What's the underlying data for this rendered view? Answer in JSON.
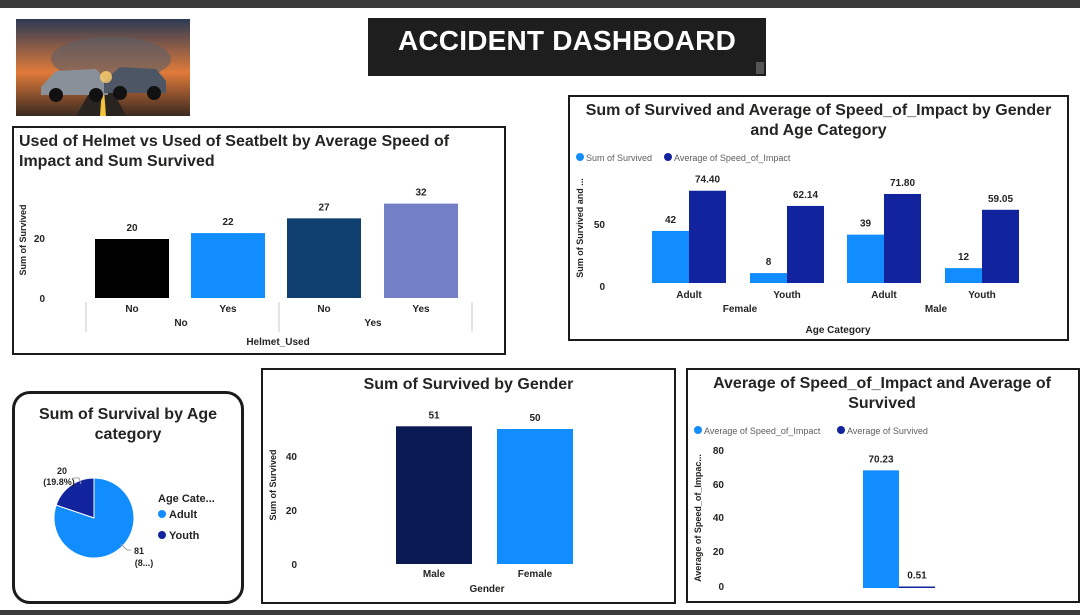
{
  "dashboard": {
    "title": "ACCIDENT DASHBOARD"
  },
  "colors": {
    "black": "#000000",
    "light_blue": "#118DFF",
    "navy": "#12239E",
    "dark_blue": "#0E3F6E",
    "lavender": "#7480C6",
    "dark_navy": "#0A1951"
  },
  "chart_data": [
    {
      "id": "helmet_seatbelt",
      "type": "bar",
      "title": "Used of Helmet vs Used of Seatbelt by Average Speed of Impact and Sum Survived",
      "xlabel": "Helmet_Used",
      "ylabel": "Sum of Survived",
      "groups": [
        "No",
        "Yes"
      ],
      "categories": [
        "No",
        "Yes",
        "No",
        "Yes"
      ],
      "values": [
        20,
        22,
        27,
        32
      ],
      "data_labels": [
        "20",
        "22",
        "27",
        "32"
      ],
      "bar_colors": [
        "#000000",
        "#118DFF",
        "#0E3F6E",
        "#7480C6"
      ],
      "yticks": [
        "20",
        "0"
      ],
      "ylim": [
        0,
        35
      ]
    },
    {
      "id": "gender_age",
      "type": "bar",
      "title": "Sum of Survived and Average of Speed_of_Impact by Gender and Age Category",
      "xlabel": "Age Category",
      "ylabel": "Sum of Survived and ...",
      "groups": [
        "Female",
        "Male"
      ],
      "categories": [
        "Adult",
        "Youth",
        "Adult",
        "Youth"
      ],
      "series": [
        {
          "name": "Sum of Survived",
          "color": "#118DFF",
          "values": [
            42,
            8,
            39,
            12
          ],
          "labels": [
            "42",
            "8",
            "39",
            "12"
          ]
        },
        {
          "name": "Average of Speed_of_Impact",
          "color": "#12239E",
          "values": [
            74.4,
            62.14,
            71.8,
            59.05
          ],
          "labels": [
            "74.40",
            "62.14",
            "71.80",
            "59.05"
          ]
        }
      ],
      "yticks": [
        "50",
        "0"
      ],
      "ylim": [
        0,
        85
      ]
    },
    {
      "id": "age_pie",
      "type": "pie",
      "title": "Sum of Survival by Age category",
      "legend_title": "Age Cate...",
      "slices": [
        {
          "label": "Adult",
          "value": 81,
          "color": "#118DFF",
          "data_label": "81",
          "pct_label": "(8...)"
        },
        {
          "label": "Youth",
          "value": 20,
          "color": "#12239E",
          "data_label": "20",
          "pct_label": "(19.8%)"
        }
      ]
    },
    {
      "id": "gender_bar",
      "type": "bar",
      "title": "Sum of Survived by Gender",
      "xlabel": "Gender",
      "ylabel": "Sum of Survived",
      "categories": [
        "Male",
        "Female"
      ],
      "values": [
        51,
        50
      ],
      "data_labels": [
        "51",
        "50"
      ],
      "bar_colors": [
        "#0A1951",
        "#118DFF"
      ],
      "yticks": [
        "40",
        "20",
        "0"
      ],
      "ylim": [
        0,
        55
      ]
    },
    {
      "id": "speed_survived",
      "type": "bar",
      "title": "Average of Speed_of_Impact and Average of Survived",
      "ylabel": "Average of Speed_of_Impac...",
      "series": [
        {
          "name": "Average of Speed_of_Impact",
          "color": "#118DFF",
          "values": [
            70.23
          ],
          "labels": [
            "70.23"
          ]
        },
        {
          "name": "Average of Survived",
          "color": "#12239E",
          "values": [
            0.51
          ],
          "labels": [
            "0.51"
          ]
        }
      ],
      "yticks": [
        "80",
        "60",
        "40",
        "20",
        "0"
      ],
      "ylim": [
        0,
        80
      ]
    }
  ]
}
